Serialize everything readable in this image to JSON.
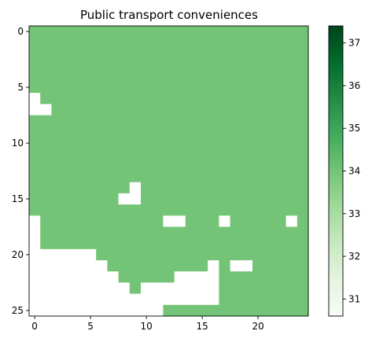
{
  "chart_data": {
    "type": "heatmap",
    "title": "Public transport conveniences",
    "rows": 26,
    "cols": 25,
    "fill_value": 34.0,
    "masked_cells": [
      [
        6,
        0
      ],
      [
        7,
        0
      ],
      [
        7,
        1
      ],
      [
        14,
        9
      ],
      [
        15,
        8
      ],
      [
        15,
        9
      ],
      [
        17,
        0
      ],
      [
        17,
        12
      ],
      [
        17,
        13
      ],
      [
        17,
        17
      ],
      [
        17,
        23
      ],
      [
        18,
        0
      ],
      [
        19,
        0
      ],
      [
        20,
        0
      ],
      [
        20,
        1
      ],
      [
        20,
        2
      ],
      [
        20,
        3
      ],
      [
        20,
        4
      ],
      [
        20,
        5
      ],
      [
        21,
        0
      ],
      [
        21,
        1
      ],
      [
        21,
        2
      ],
      [
        21,
        3
      ],
      [
        21,
        4
      ],
      [
        21,
        5
      ],
      [
        21,
        6
      ],
      [
        21,
        16
      ],
      [
        21,
        18
      ],
      [
        21,
        19
      ],
      [
        22,
        0
      ],
      [
        22,
        1
      ],
      [
        22,
        2
      ],
      [
        22,
        3
      ],
      [
        22,
        4
      ],
      [
        22,
        5
      ],
      [
        22,
        6
      ],
      [
        22,
        7
      ],
      [
        22,
        13
      ],
      [
        22,
        14
      ],
      [
        22,
        15
      ],
      [
        22,
        16
      ],
      [
        23,
        0
      ],
      [
        23,
        1
      ],
      [
        23,
        2
      ],
      [
        23,
        3
      ],
      [
        23,
        4
      ],
      [
        23,
        5
      ],
      [
        23,
        6
      ],
      [
        23,
        7
      ],
      [
        23,
        8
      ],
      [
        23,
        10
      ],
      [
        23,
        11
      ],
      [
        23,
        12
      ],
      [
        23,
        13
      ],
      [
        23,
        14
      ],
      [
        23,
        15
      ],
      [
        23,
        16
      ],
      [
        24,
        0
      ],
      [
        24,
        1
      ],
      [
        24,
        2
      ],
      [
        24,
        3
      ],
      [
        24,
        4
      ],
      [
        24,
        5
      ],
      [
        24,
        6
      ],
      [
        24,
        7
      ],
      [
        24,
        8
      ],
      [
        24,
        9
      ],
      [
        24,
        10
      ],
      [
        24,
        11
      ],
      [
        24,
        12
      ],
      [
        24,
        13
      ],
      [
        24,
        14
      ],
      [
        24,
        15
      ],
      [
        24,
        16
      ],
      [
        25,
        0
      ],
      [
        25,
        1
      ],
      [
        25,
        2
      ],
      [
        25,
        3
      ],
      [
        25,
        4
      ],
      [
        25,
        5
      ],
      [
        25,
        6
      ],
      [
        25,
        7
      ],
      [
        25,
        8
      ],
      [
        25,
        9
      ],
      [
        25,
        10
      ],
      [
        25,
        11
      ]
    ],
    "x_ticks": [
      0,
      5,
      10,
      15,
      20
    ],
    "y_ticks": [
      0,
      5,
      10,
      15,
      20,
      25
    ],
    "colorbar": {
      "min": 30.6,
      "max": 37.4,
      "ticks": [
        31,
        32,
        33,
        34,
        35,
        36,
        37
      ],
      "colormap": "Greens"
    },
    "colors": {
      "cell": "#73c476",
      "masked": "#ffffff",
      "axis": "#000000"
    }
  }
}
